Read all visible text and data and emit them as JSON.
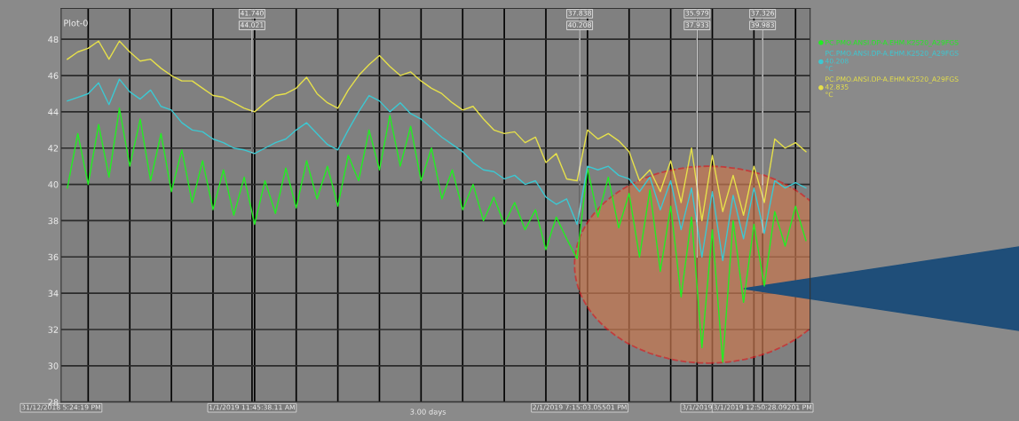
{
  "chart_data": {
    "type": "line",
    "title": "Plot-0",
    "x": [
      "2018-12-31T18:00",
      "2018-12-31T19:00",
      "2018-12-31T20:00",
      "2018-12-31T21:00",
      "2018-12-31T22:00",
      "2018-12-31T23:00",
      "2019-01-01T00:00",
      "2019-01-01T01:00",
      "2019-01-01T02:00",
      "2019-01-01T03:00",
      "2019-01-01T04:00",
      "2019-01-01T05:00",
      "2019-01-01T06:00",
      "2019-01-01T07:00",
      "2019-01-01T08:00",
      "2019-01-01T09:00",
      "2019-01-01T10:00",
      "2019-01-01T11:00",
      "2019-01-01T12:00",
      "2019-01-01T13:00",
      "2019-01-01T14:00",
      "2019-01-01T15:00",
      "2019-01-01T16:00",
      "2019-01-01T17:00",
      "2019-01-01T18:00",
      "2019-01-01T19:00",
      "2019-01-01T20:00",
      "2019-01-01T21:00",
      "2019-01-01T22:00",
      "2019-01-01T23:00",
      "2019-01-02T00:00",
      "2019-01-02T01:00",
      "2019-01-02T02:00",
      "2019-01-02T03:00",
      "2019-01-02T04:00",
      "2019-01-02T05:00",
      "2019-01-02T06:00",
      "2019-01-02T07:00",
      "2019-01-02T08:00",
      "2019-01-02T09:00",
      "2019-01-02T10:00",
      "2019-01-02T11:00",
      "2019-01-02T12:00",
      "2019-01-02T13:00",
      "2019-01-02T14:00",
      "2019-01-02T15:00",
      "2019-01-02T16:00",
      "2019-01-02T17:00",
      "2019-01-02T18:00",
      "2019-01-02T19:00",
      "2019-01-02T20:00",
      "2019-01-02T21:00",
      "2019-01-02T22:00",
      "2019-01-02T23:00",
      "2019-01-03T00:00",
      "2019-01-03T01:00",
      "2019-01-03T02:00",
      "2019-01-03T03:00",
      "2019-01-03T04:00",
      "2019-01-03T05:00",
      "2019-01-03T06:00",
      "2019-01-03T07:00",
      "2019-01-03T08:00",
      "2019-01-03T09:00",
      "2019-01-03T10:00",
      "2019-01-03T11:00",
      "2019-01-03T12:00",
      "2019-01-03T13:00",
      "2019-01-03T14:00",
      "2019-01-03T15:00",
      "2019-01-03T16:00",
      "2019-01-03T17:00"
    ],
    "series": [
      {
        "name": "PC.PMO.ANSI.DP-A.EHM.K2520_A29FGS",
        "color": "#22ee22",
        "values": [
          39.8,
          42.8,
          40.0,
          43.3,
          40.4,
          44.2,
          41.0,
          43.6,
          40.2,
          42.8,
          39.6,
          41.9,
          39.0,
          41.3,
          38.6,
          40.8,
          38.3,
          40.4,
          37.8,
          40.2,
          38.4,
          40.9,
          38.7,
          41.3,
          39.2,
          41.0,
          38.8,
          41.6,
          40.2,
          43.0,
          40.8,
          43.8,
          41.0,
          43.2,
          40.2,
          42.0,
          39.2,
          40.8,
          38.6,
          40.0,
          38.0,
          39.3,
          37.8,
          39.0,
          37.5,
          38.6,
          36.4,
          38.2,
          37.0,
          35.9,
          40.9,
          38.2,
          40.4,
          37.6,
          39.5,
          36.0,
          39.7,
          35.2,
          38.8,
          33.8,
          38.2,
          31.0,
          37.5,
          30.2,
          38.0,
          33.5,
          37.8,
          34.4,
          38.5,
          36.6,
          38.8,
          36.9
        ]
      },
      {
        "name": "PC.PMO.ANSI.DP-A.EHM.K2520_A29FGS\n40.208\n°C",
        "color": "#3cc8d2",
        "values": [
          44.6,
          44.8,
          45.0,
          45.6,
          44.4,
          45.8,
          45.1,
          44.7,
          45.2,
          44.3,
          44.1,
          43.4,
          43.0,
          42.9,
          42.5,
          42.3,
          42.0,
          41.9,
          41.7,
          42.0,
          42.3,
          42.5,
          43.0,
          43.4,
          42.8,
          42.2,
          41.9,
          43.0,
          44.0,
          44.9,
          44.6,
          44.0,
          44.5,
          43.9,
          43.6,
          43.1,
          42.6,
          42.2,
          41.8,
          41.2,
          40.8,
          40.7,
          40.3,
          40.5,
          40.0,
          40.2,
          39.3,
          38.9,
          39.2,
          37.8,
          41.0,
          40.8,
          41.0,
          40.5,
          40.3,
          39.6,
          40.4,
          38.6,
          40.2,
          37.5,
          39.8,
          36.0,
          39.6,
          35.8,
          39.4,
          37.0,
          39.8,
          37.3,
          40.2,
          39.8,
          40.1,
          39.8
        ]
      },
      {
        "name": "PC.PMO.ANSI.DP-A.EHM.K2520_A29FGS\n42.835\n°C",
        "color": "#e6e04a",
        "values": [
          46.9,
          47.3,
          47.5,
          47.9,
          46.9,
          47.9,
          47.3,
          46.8,
          46.9,
          46.4,
          46.0,
          45.7,
          45.7,
          45.3,
          44.9,
          44.8,
          44.5,
          44.2,
          44.0,
          44.5,
          44.9,
          45.0,
          45.3,
          45.9,
          45.0,
          44.5,
          44.2,
          45.2,
          46.0,
          46.6,
          47.1,
          46.5,
          46.0,
          46.2,
          45.7,
          45.3,
          45.0,
          44.5,
          44.1,
          44.3,
          43.6,
          43.0,
          42.8,
          42.9,
          42.3,
          42.6,
          41.2,
          41.7,
          40.3,
          40.2,
          43.0,
          42.5,
          42.8,
          42.4,
          41.8,
          40.2,
          40.8,
          39.6,
          41.3,
          39.0,
          42.0,
          38.0,
          41.6,
          38.5,
          40.5,
          38.3,
          41.0,
          39.0,
          42.5,
          42.0,
          42.3,
          41.8
        ]
      }
    ],
    "xlim": [
      "2018-12-31T17:24",
      "2019-01-03T17:24"
    ],
    "xticks": [
      {
        "value": "2018-12-31T17:24",
        "label": "31/12/2018 5:24:19 PM"
      },
      {
        "value": "2018-12-31T20:00",
        "label": null
      },
      {
        "value": "2019-01-01T00:00",
        "label": null
      },
      {
        "value": "2019-01-01T04:00",
        "label": null
      },
      {
        "value": "2019-01-01T08:00",
        "label": null
      },
      {
        "value": "2019-01-01T11:45",
        "label": "1/1/2019 11:45:38.11 AM"
      },
      {
        "value": "2019-01-01T12:00",
        "label": null
      },
      {
        "value": "2019-01-01T16:00",
        "label": null
      },
      {
        "value": "2019-01-01T20:00",
        "label": null
      },
      {
        "value": "2019-01-02T00:00",
        "label": null
      },
      {
        "value": "2019-01-02T04:00",
        "label": null
      },
      {
        "value": "2019-01-02T08:00",
        "label": null
      },
      {
        "value": "2019-01-02T12:00",
        "label": null
      },
      {
        "value": "2019-01-02T16:00",
        "label": null
      },
      {
        "value": "2019-01-02T19:15",
        "label": "2/1/2019 7:15:03.05501 PM"
      },
      {
        "value": "2019-01-02T20:00",
        "label": null
      },
      {
        "value": "2019-01-03T00:00",
        "label": null
      },
      {
        "value": "2019-01-03T04:00",
        "label": null
      },
      {
        "value": "2019-01-03T06:32",
        "label": "3/1/2019"
      },
      {
        "value": "2019-01-03T08:00",
        "label": null
      },
      {
        "value": "2019-01-03T12:00",
        "label": null
      },
      {
        "value": "2019-01-03T12:50",
        "label": "3/1/2019 12:50:28.09201 PM"
      },
      {
        "value": "2019-01-03T16:00",
        "label": null
      }
    ],
    "ylim": [
      28,
      49.7
    ],
    "yticks": [
      28,
      30,
      32,
      34,
      36,
      38,
      40,
      42,
      44,
      46,
      48
    ],
    "annotations": [
      {
        "text": "41.740",
        "x": "2019-01-01T11:45",
        "y": 41.74
      },
      {
        "text": "44.021",
        "x": "2019-01-01T11:45",
        "y": 44.021
      },
      {
        "text": "37.838",
        "x": "2019-01-02T19:15",
        "y": 37.838
      },
      {
        "text": "40.208",
        "x": "2019-01-02T19:15",
        "y": 40.208
      },
      {
        "text": "35.979",
        "x": "2019-01-03T06:32",
        "y": 35.979
      },
      {
        "text": "37.933",
        "x": "2019-01-03T06:32",
        "y": 37.933
      },
      {
        "text": "37.326",
        "x": "2019-01-03T12:50",
        "y": 37.326
      },
      {
        "text": "39.983",
        "x": "2019-01-03T12:50",
        "y": 39.983
      },
      "3.00 days"
    ],
    "grid": true,
    "legend": "right",
    "marker": "none",
    "line_style": "solid"
  }
}
